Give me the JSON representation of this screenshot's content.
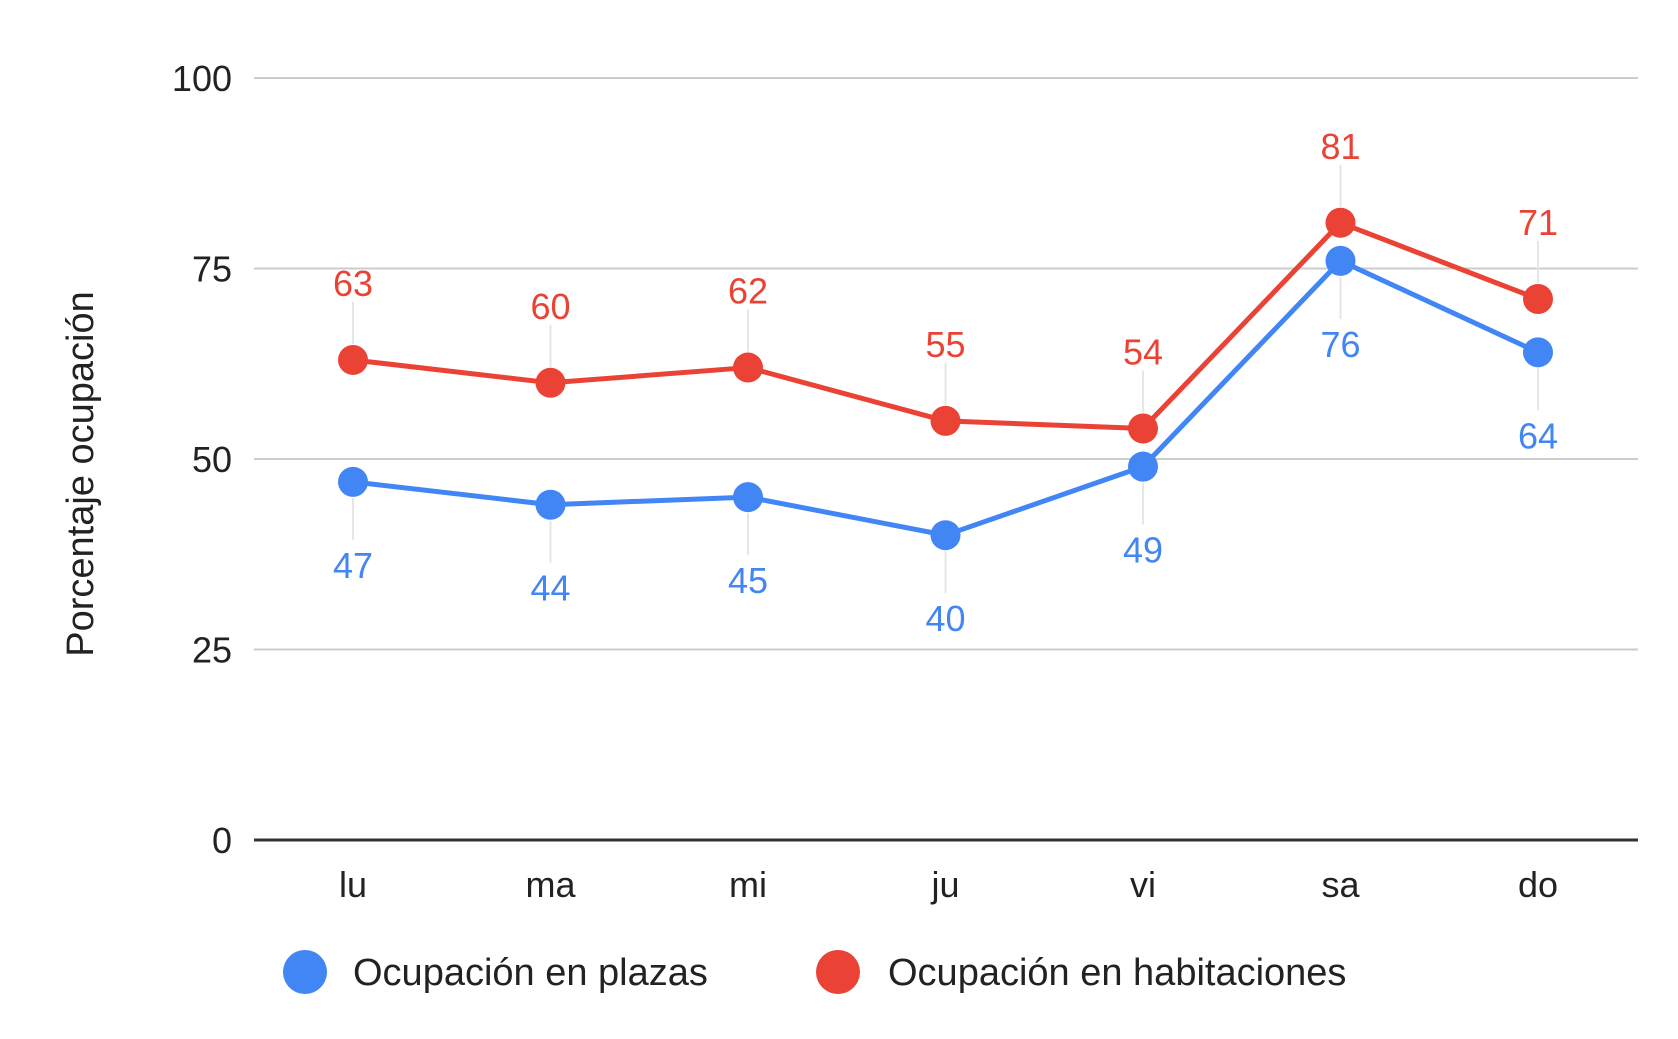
{
  "chart_data": {
    "type": "line",
    "title": "",
    "xlabel": "",
    "ylabel": "Porcentaje ocupación",
    "categories": [
      "lu",
      "ma",
      "mi",
      "ju",
      "vi",
      "sa",
      "do"
    ],
    "ylim": [
      0,
      100
    ],
    "yticks": [
      0,
      25,
      50,
      75,
      100
    ],
    "grid": true,
    "legend_position": "bottom",
    "series": [
      {
        "name": "Ocupación en plazas",
        "values": [
          47,
          44,
          45,
          40,
          49,
          76,
          64
        ],
        "color": "#4285f4",
        "label_position": "below"
      },
      {
        "name": "Ocupación en habitaciones",
        "values": [
          63,
          60,
          62,
          55,
          54,
          81,
          71
        ],
        "color": "#ea4335",
        "label_position": "above"
      }
    ]
  }
}
